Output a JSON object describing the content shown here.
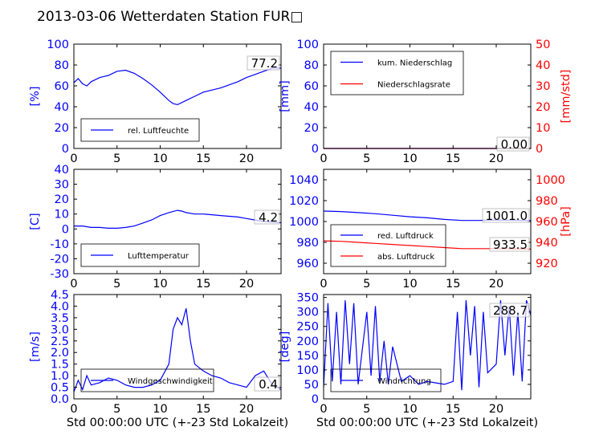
{
  "title": "2013-03-06 Wetterdaten Station FUR□",
  "colors": {
    "primary": "#0000ff",
    "secondary": "#ff0000",
    "axis": "#000000"
  },
  "chart_data": [
    {
      "id": "humidity",
      "type": "line",
      "ylabel": "[%]",
      "xlim": [
        0,
        24
      ],
      "xticks": [
        0,
        5,
        10,
        15,
        20
      ],
      "ylim": [
        0,
        100
      ],
      "yticks": [
        0,
        20,
        40,
        60,
        80,
        100
      ],
      "legend": "lower-left",
      "annotation": "77.2",
      "series": [
        {
          "name": "rel. Luftfeuchte",
          "color": "#0000ff",
          "axis": "left",
          "x": [
            0,
            0.5,
            1,
            1.5,
            2,
            3,
            4,
            5,
            6,
            7,
            8,
            9,
            10,
            11,
            11.5,
            12,
            13,
            14,
            15,
            16,
            17,
            18,
            19,
            20,
            21,
            22,
            23,
            24
          ],
          "y": [
            63,
            67,
            62,
            60,
            64,
            68,
            70,
            74,
            75,
            72,
            67,
            61,
            54,
            46,
            43,
            42,
            46,
            50,
            54,
            56,
            58,
            61,
            64,
            68,
            71,
            74,
            77,
            77
          ]
        }
      ]
    },
    {
      "id": "precipitation",
      "type": "line",
      "ylabel": "[mm]",
      "y2label": "[mm/std]",
      "xlim": [
        0,
        24
      ],
      "xticks": [
        0,
        5,
        10,
        15,
        20
      ],
      "ylim": [
        0,
        100
      ],
      "yticks": [
        0,
        20,
        40,
        60,
        80,
        100
      ],
      "y2lim": [
        0,
        50
      ],
      "y2ticks": [
        0,
        10,
        20,
        30,
        40,
        50
      ],
      "legend": "upper-left",
      "annotation": "0.00",
      "series": [
        {
          "name": "kum. Niederschlag",
          "color": "#0000ff",
          "axis": "left",
          "x": [
            0,
            24
          ],
          "y": [
            0,
            0
          ]
        },
        {
          "name": "Niederschlagsrate",
          "color": "#ff0000",
          "axis": "right",
          "x": [
            0,
            24
          ],
          "y": [
            0,
            0
          ]
        }
      ]
    },
    {
      "id": "temperature",
      "type": "line",
      "ylabel": "[C]",
      "xlim": [
        0,
        24
      ],
      "xticks": [
        0,
        5,
        10,
        15,
        20
      ],
      "ylim": [
        -30,
        40
      ],
      "yticks": [
        -30,
        -20,
        -10,
        0,
        10,
        20,
        30,
        40
      ],
      "legend": "lower-left",
      "annotation": "4.2",
      "series": [
        {
          "name": "Lufttemperatur",
          "color": "#0000ff",
          "axis": "left",
          "x": [
            0,
            1,
            2,
            3,
            4,
            5,
            6,
            7,
            8,
            9,
            10,
            11,
            12,
            12.5,
            13,
            14,
            15,
            16,
            17,
            18,
            19,
            20,
            21,
            22,
            23,
            24
          ],
          "y": [
            2,
            2,
            1,
            1,
            0.5,
            0.5,
            1,
            2,
            4,
            6,
            9,
            11,
            12.5,
            12,
            11,
            10,
            10,
            9.5,
            9,
            8.5,
            8,
            7,
            6,
            5,
            4.5,
            4.2
          ]
        }
      ]
    },
    {
      "id": "pressure",
      "type": "line",
      "y2label": "[hPa]",
      "xlim": [
        0,
        24
      ],
      "xticks": [
        0,
        5,
        10,
        15,
        20
      ],
      "ylim": [
        950,
        1050
      ],
      "yticks": [
        960,
        980,
        1000,
        1020,
        1040
      ],
      "y2lim": [
        910,
        1010
      ],
      "y2ticks": [
        920,
        940,
        960,
        980,
        1000
      ],
      "legend": "lower-left",
      "annotations": [
        "1001.0",
        "933.5"
      ],
      "series": [
        {
          "name": "red. Luftdruck",
          "color": "#0000ff",
          "axis": "left",
          "x": [
            0,
            2,
            4,
            6,
            8,
            10,
            12,
            14,
            16,
            18,
            20,
            22,
            24
          ],
          "y": [
            1010,
            1009.5,
            1008.5,
            1007.5,
            1006,
            1004.5,
            1003.5,
            1002,
            1001,
            1001,
            1001.5,
            1001.2,
            1001
          ]
        },
        {
          "name": "abs. Luftdruck",
          "color": "#ff0000",
          "axis": "right",
          "x": [
            0,
            2,
            4,
            6,
            8,
            10,
            12,
            14,
            16,
            18,
            20,
            22,
            24
          ],
          "y": [
            941.5,
            941,
            940,
            939,
            938,
            937,
            936,
            935,
            934,
            934,
            934,
            933.8,
            933.5
          ]
        }
      ]
    },
    {
      "id": "wind-speed",
      "type": "line",
      "ylabel": "[m/s]",
      "xlabel": "Std 00:00:00 UTC (+-23 Std Lokalzeit)",
      "xlim": [
        0,
        24
      ],
      "xticks": [
        0,
        5,
        10,
        15,
        20
      ],
      "ylim": [
        0,
        4.5
      ],
      "yticks": [
        0.0,
        0.5,
        1.0,
        1.5,
        2.0,
        2.5,
        3.0,
        3.5,
        4.0,
        4.5
      ],
      "legend": "lower-left",
      "annotation": "0.4",
      "series": [
        {
          "name": "Windgeschwindigkeit",
          "color": "#0000ff",
          "axis": "left",
          "x": [
            0,
            0.5,
            1,
            1.5,
            2,
            3,
            4,
            5,
            6,
            7,
            8,
            9,
            10,
            11,
            11.5,
            12,
            12.5,
            13,
            13.5,
            14,
            15,
            16,
            17,
            18,
            19,
            20,
            21,
            22,
            23,
            24
          ],
          "y": [
            0.3,
            0.8,
            0.4,
            1.0,
            0.6,
            0.7,
            0.9,
            0.8,
            0.6,
            0.5,
            0.5,
            0.6,
            0.8,
            1.5,
            3.0,
            3.5,
            3.2,
            3.9,
            2.5,
            1.5,
            1.2,
            1.0,
            0.9,
            0.7,
            0.6,
            0.5,
            1.0,
            1.2,
            0.6,
            0.4
          ]
        }
      ]
    },
    {
      "id": "wind-direction",
      "type": "line",
      "ylabel": "[deg]",
      "xlabel": "Std 00:00:00 UTC (+-23 Std Lokalzeit)",
      "xlim": [
        0,
        24
      ],
      "xticks": [
        0,
        5,
        10,
        15,
        20
      ],
      "ylim": [
        0,
        360
      ],
      "yticks": [
        0,
        50,
        100,
        150,
        200,
        250,
        300,
        350
      ],
      "legend": "lower-left",
      "annotation": "288.7",
      "series": [
        {
          "name": "Windrichtung",
          "color": "#0000ff",
          "axis": "left",
          "x": [
            0,
            0.5,
            1,
            1.5,
            2,
            2.5,
            3,
            3.5,
            4,
            5,
            5.5,
            6,
            6.5,
            7,
            7.5,
            8,
            9,
            10,
            11,
            12,
            13,
            14,
            15,
            15.5,
            16,
            16.5,
            17,
            17.5,
            18,
            18.5,
            19,
            20,
            20.5,
            21,
            21.5,
            22,
            22.5,
            23,
            23.5,
            24
          ],
          "y": [
            40,
            330,
            60,
            300,
            50,
            340,
            120,
            330,
            50,
            300,
            80,
            320,
            60,
            200,
            50,
            180,
            60,
            80,
            50,
            60,
            55,
            50,
            60,
            300,
            30,
            340,
            150,
            320,
            40,
            300,
            90,
            120,
            340,
            150,
            320,
            80,
            300,
            60,
            340,
            289
          ]
        }
      ]
    }
  ]
}
